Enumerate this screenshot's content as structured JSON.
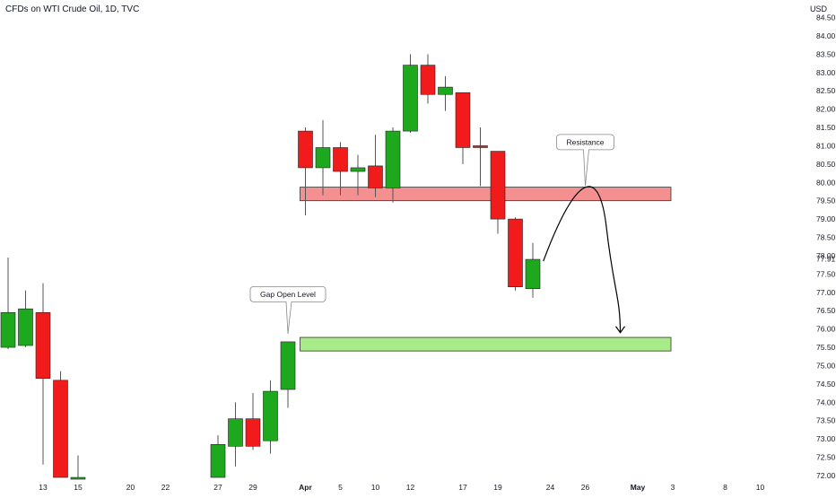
{
  "header": {
    "symbol_text": "CFDs on WTI Crude Oil, 1D, TVC",
    "currency": "USD"
  },
  "colors": {
    "up": "#1ea81e",
    "down": "#f21b1b",
    "wick": "#555555",
    "resistance_fill": "#f59090",
    "support_fill": "#a8ec8a",
    "zone_stroke": "#333333"
  },
  "chart_data": {
    "type": "candlestick",
    "title": "CFDs on WTI Crude Oil, 1D, TVC",
    "ylabel": "USD",
    "ylim": [
      72.0,
      84.5
    ],
    "y_ticks": [
      "84.50",
      "84.00",
      "83.50",
      "83.00",
      "82.50",
      "82.00",
      "81.50",
      "81.00",
      "80.50",
      "80.00",
      "79.50",
      "79.00",
      "78.50",
      "78.00",
      "77.91",
      "77.50",
      "77.00",
      "76.50",
      "76.00",
      "75.50",
      "75.00",
      "74.50",
      "74.00",
      "73.50",
      "73.00",
      "72.50",
      "72.00"
    ],
    "last_price": 77.91,
    "x_ticks": [
      {
        "label": "13",
        "slot": 2
      },
      {
        "label": "15",
        "slot": 4
      },
      {
        "label": "20",
        "slot": 7
      },
      {
        "label": "22",
        "slot": 9
      },
      {
        "label": "27",
        "slot": 12
      },
      {
        "label": "29",
        "slot": 14
      },
      {
        "label": "Apr",
        "slot": 17,
        "bold": true
      },
      {
        "label": "5",
        "slot": 19
      },
      {
        "label": "10",
        "slot": 21
      },
      {
        "label": "12",
        "slot": 23
      },
      {
        "label": "17",
        "slot": 26
      },
      {
        "label": "19",
        "slot": 28
      },
      {
        "label": "24",
        "slot": 31
      },
      {
        "label": "26",
        "slot": 33
      },
      {
        "label": "May",
        "slot": 36,
        "bold": true
      },
      {
        "label": "3",
        "slot": 38
      },
      {
        "label": "8",
        "slot": 41
      },
      {
        "label": "10",
        "slot": 43
      }
    ],
    "candles": [
      {
        "slot": 0,
        "open": 75.5,
        "close": 76.45,
        "high": 77.95,
        "low": 75.45
      },
      {
        "slot": 1,
        "open": 75.55,
        "close": 76.55,
        "high": 77.05,
        "low": 75.5
      },
      {
        "slot": 2,
        "open": 76.45,
        "close": 74.65,
        "high": 77.25,
        "low": 72.3
      },
      {
        "slot": 3,
        "open": 74.6,
        "close": 71.95,
        "high": 74.85,
        "low": 71.95
      },
      {
        "slot": 4,
        "open": 71.95,
        "close": 71.95,
        "high": 72.55,
        "low": 71.95
      },
      {
        "slot": 12,
        "open": 71.95,
        "close": 72.85,
        "high": 73.1,
        "low": 71.95
      },
      {
        "slot": 13,
        "open": 72.8,
        "close": 73.55,
        "high": 74.0,
        "low": 72.25
      },
      {
        "slot": 14,
        "open": 73.55,
        "close": 72.8,
        "high": 74.25,
        "low": 72.7
      },
      {
        "slot": 15,
        "open": 72.95,
        "close": 74.3,
        "high": 74.6,
        "low": 72.6
      },
      {
        "slot": 16,
        "open": 74.35,
        "close": 75.65,
        "high": 75.65,
        "low": 73.85
      },
      {
        "slot": 17,
        "open": 81.4,
        "close": 80.4,
        "high": 81.5,
        "low": 79.1
      },
      {
        "slot": 18,
        "open": 80.4,
        "close": 80.95,
        "high": 81.7,
        "low": 79.65
      },
      {
        "slot": 19,
        "open": 80.95,
        "close": 80.3,
        "high": 81.1,
        "low": 79.65
      },
      {
        "slot": 20,
        "open": 80.3,
        "close": 80.4,
        "high": 80.75,
        "low": 79.65
      },
      {
        "slot": 21,
        "open": 80.45,
        "close": 79.85,
        "high": 81.3,
        "low": 79.6
      },
      {
        "slot": 22,
        "open": 79.85,
        "close": 81.4,
        "high": 81.5,
        "low": 79.45
      },
      {
        "slot": 23,
        "open": 81.4,
        "close": 83.2,
        "high": 83.5,
        "low": 81.35
      },
      {
        "slot": 24,
        "open": 83.2,
        "close": 82.4,
        "high": 83.5,
        "low": 82.15
      },
      {
        "slot": 25,
        "open": 82.4,
        "close": 82.6,
        "high": 82.9,
        "low": 81.95
      },
      {
        "slot": 26,
        "open": 82.45,
        "close": 80.95,
        "high": 82.45,
        "low": 80.5
      },
      {
        "slot": 27,
        "open": 81.0,
        "close": 80.95,
        "high": 81.5,
        "low": 79.9
      },
      {
        "slot": 28,
        "open": 80.85,
        "close": 79.0,
        "high": 80.85,
        "low": 78.6
      },
      {
        "slot": 29,
        "open": 79.0,
        "close": 77.15,
        "high": 79.05,
        "low": 77.05
      },
      {
        "slot": 30,
        "open": 77.1,
        "close": 77.9,
        "high": 78.35,
        "low": 76.85
      }
    ],
    "zones": [
      {
        "name": "resistance",
        "from_slot": 17,
        "to_slot": 38,
        "top": 79.87,
        "bottom": 79.5
      },
      {
        "name": "support",
        "from_slot": 17,
        "to_slot": 38,
        "top": 75.77,
        "bottom": 75.4
      }
    ],
    "annotations": [
      {
        "text": "Resistance",
        "slot": 33,
        "price": 81.1,
        "pointer_price": 79.9
      },
      {
        "text": "Gap Open Level",
        "slot": 16,
        "price": 76.95,
        "pointer_price": 75.87
      }
    ],
    "projection": [
      {
        "slot": 30.6,
        "price": 77.85
      },
      {
        "slot": 32.5,
        "price": 79.78
      },
      {
        "slot": 33.8,
        "price": 79.5
      },
      {
        "slot": 35.0,
        "price": 75.9
      }
    ]
  }
}
